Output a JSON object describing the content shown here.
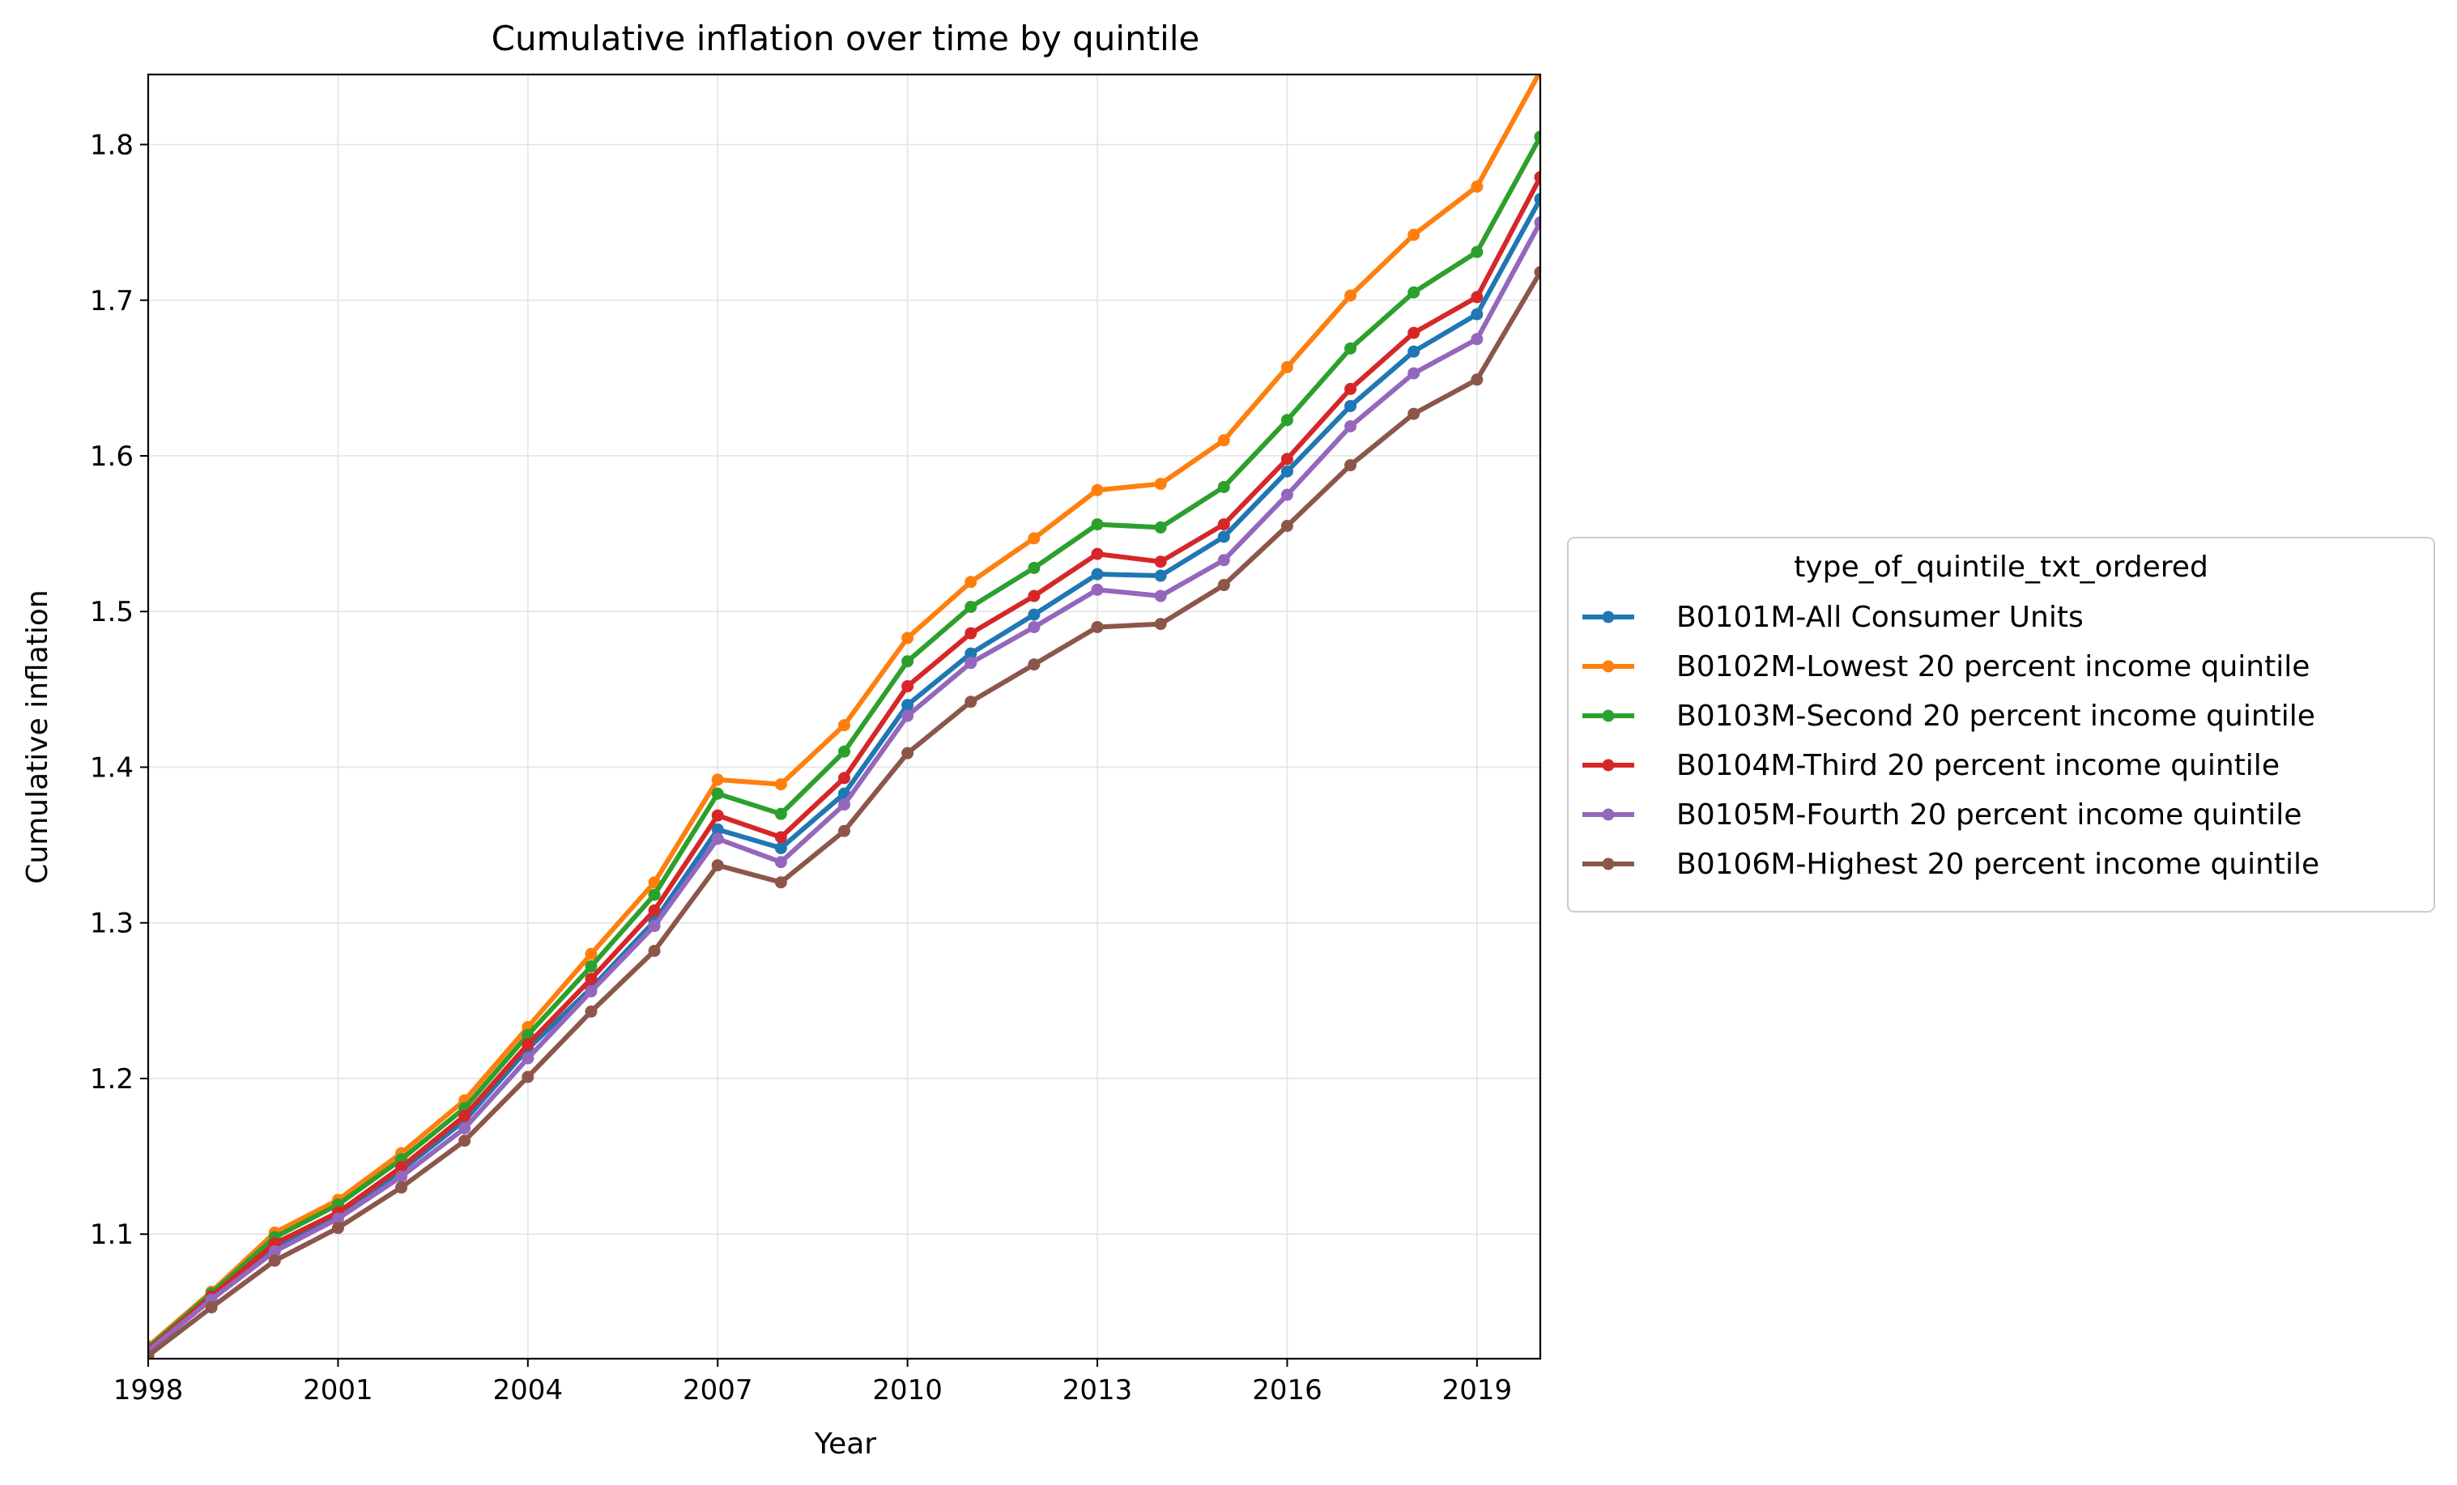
{
  "chart_data": {
    "type": "line",
    "title": "Cumulative inflation over time by quintile",
    "xlabel": "Year",
    "ylabel": "Cumulative inflation",
    "xlim": [
      1998,
      2020
    ],
    "ylim": [
      1.02,
      1.845
    ],
    "x_ticks": [
      1998,
      2001,
      2004,
      2007,
      2010,
      2013,
      2016,
      2019
    ],
    "y_ticks": [
      1.1,
      1.2,
      1.3,
      1.4,
      1.5,
      1.6,
      1.7,
      1.8
    ],
    "y_tick_labels": [
      "1.1",
      "1.2",
      "1.3",
      "1.4",
      "1.5",
      "1.6",
      "1.7",
      "1.8"
    ],
    "grid": true,
    "legend_title": "type_of_quintile_txt_ordered",
    "legend_placement": "outside-right",
    "x": [
      1998,
      1999,
      2000,
      2001,
      2002,
      2003,
      2004,
      2005,
      2006,
      2007,
      2008,
      2009,
      2010,
      2011,
      2012,
      2013,
      2014,
      2015,
      2016,
      2017,
      2018,
      2019,
      2020
    ],
    "series": [
      {
        "name": "B0101M-All Consumer Units",
        "color": "#1f77b4",
        "values": [
          1.026,
          1.059,
          1.092,
          1.112,
          1.141,
          1.173,
          1.219,
          1.258,
          1.301,
          1.36,
          1.348,
          1.383,
          1.44,
          1.473,
          1.498,
          1.524,
          1.523,
          1.548,
          1.59,
          1.632,
          1.667,
          1.691,
          1.765
        ]
      },
      {
        "name": "B0102M-Lowest 20 percent income quintile",
        "color": "#ff7f0e",
        "values": [
          1.028,
          1.063,
          1.101,
          1.122,
          1.152,
          1.186,
          1.233,
          1.28,
          1.326,
          1.392,
          1.389,
          1.427,
          1.483,
          1.519,
          1.547,
          1.578,
          1.582,
          1.61,
          1.657,
          1.703,
          1.742,
          1.773,
          1.847
        ]
      },
      {
        "name": "B0103M-Second 20 percent income quintile",
        "color": "#2ca02c",
        "values": [
          1.027,
          1.062,
          1.098,
          1.119,
          1.148,
          1.181,
          1.228,
          1.272,
          1.318,
          1.383,
          1.37,
          1.41,
          1.468,
          1.503,
          1.528,
          1.556,
          1.554,
          1.58,
          1.623,
          1.669,
          1.705,
          1.731,
          1.805
        ]
      },
      {
        "name": "B0104M-Third 20 percent income quintile",
        "color": "#d62728",
        "values": [
          1.026,
          1.06,
          1.094,
          1.114,
          1.143,
          1.176,
          1.222,
          1.264,
          1.308,
          1.369,
          1.355,
          1.393,
          1.452,
          1.486,
          1.51,
          1.537,
          1.532,
          1.556,
          1.598,
          1.643,
          1.679,
          1.702,
          1.779
        ]
      },
      {
        "name": "B0105M-Fourth 20 percent income quintile",
        "color": "#9467bd",
        "values": [
          1.025,
          1.058,
          1.089,
          1.11,
          1.137,
          1.168,
          1.213,
          1.256,
          1.298,
          1.354,
          1.339,
          1.376,
          1.433,
          1.467,
          1.49,
          1.514,
          1.51,
          1.533,
          1.575,
          1.619,
          1.653,
          1.675,
          1.75
        ]
      },
      {
        "name": "B0106M-Highest 20 percent income quintile",
        "color": "#8c564b",
        "values": [
          1.022,
          1.053,
          1.083,
          1.104,
          1.13,
          1.16,
          1.201,
          1.243,
          1.282,
          1.337,
          1.326,
          1.359,
          1.409,
          1.442,
          1.466,
          1.49,
          1.492,
          1.517,
          1.555,
          1.594,
          1.627,
          1.649,
          1.718
        ]
      }
    ]
  }
}
